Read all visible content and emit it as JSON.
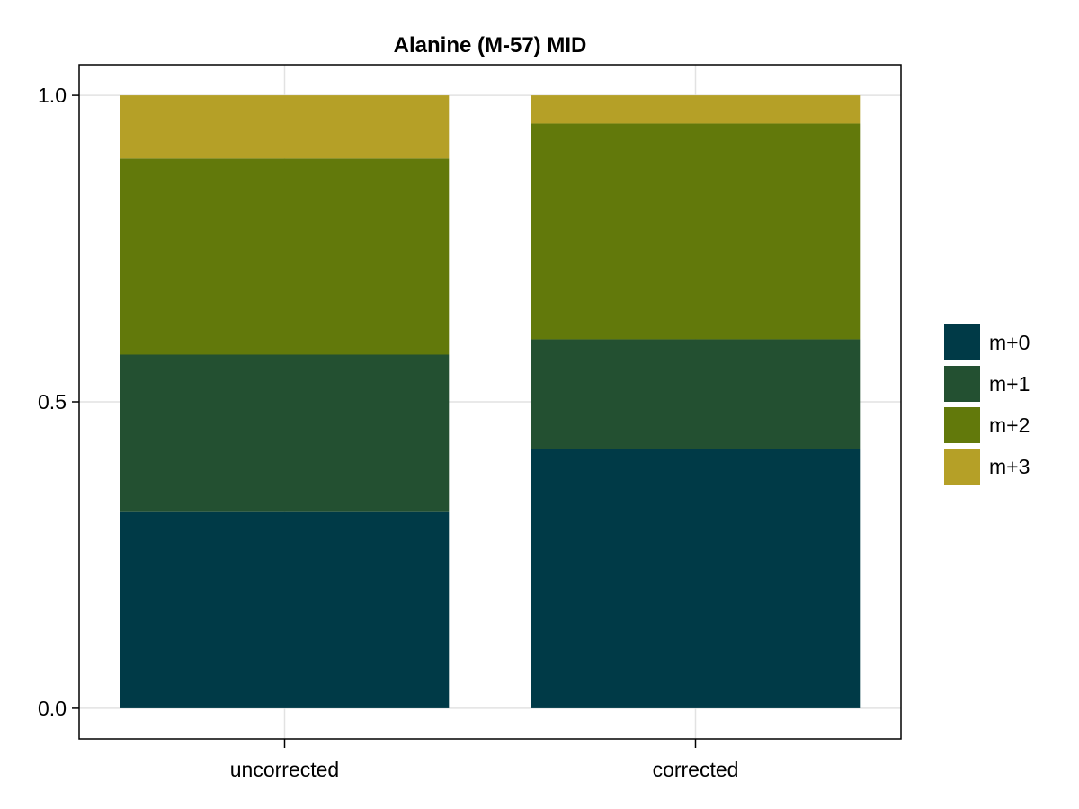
{
  "chart_data": {
    "type": "bar",
    "stacked": true,
    "title": "Alanine (M-57) MID",
    "xlabel": "",
    "ylabel": "",
    "categories": [
      "uncorrected",
      "corrected"
    ],
    "series": [
      {
        "name": "m+0",
        "color": "#003a47",
        "values": [
          0.32,
          0.423
        ]
      },
      {
        "name": "m+1",
        "color": "#235031",
        "values": [
          0.257,
          0.179
        ]
      },
      {
        "name": "m+2",
        "color": "#62790b",
        "values": [
          0.32,
          0.352
        ]
      },
      {
        "name": "m+3",
        "color": "#b5a027",
        "values": [
          0.103,
          0.046
        ]
      }
    ],
    "ylim": [
      -0.05,
      1.05
    ],
    "yticks": [
      0.0,
      0.5,
      1.0
    ],
    "ytick_labels": [
      "0.0",
      "0.5",
      "1.0"
    ],
    "grid": true,
    "legend_position": "right"
  }
}
